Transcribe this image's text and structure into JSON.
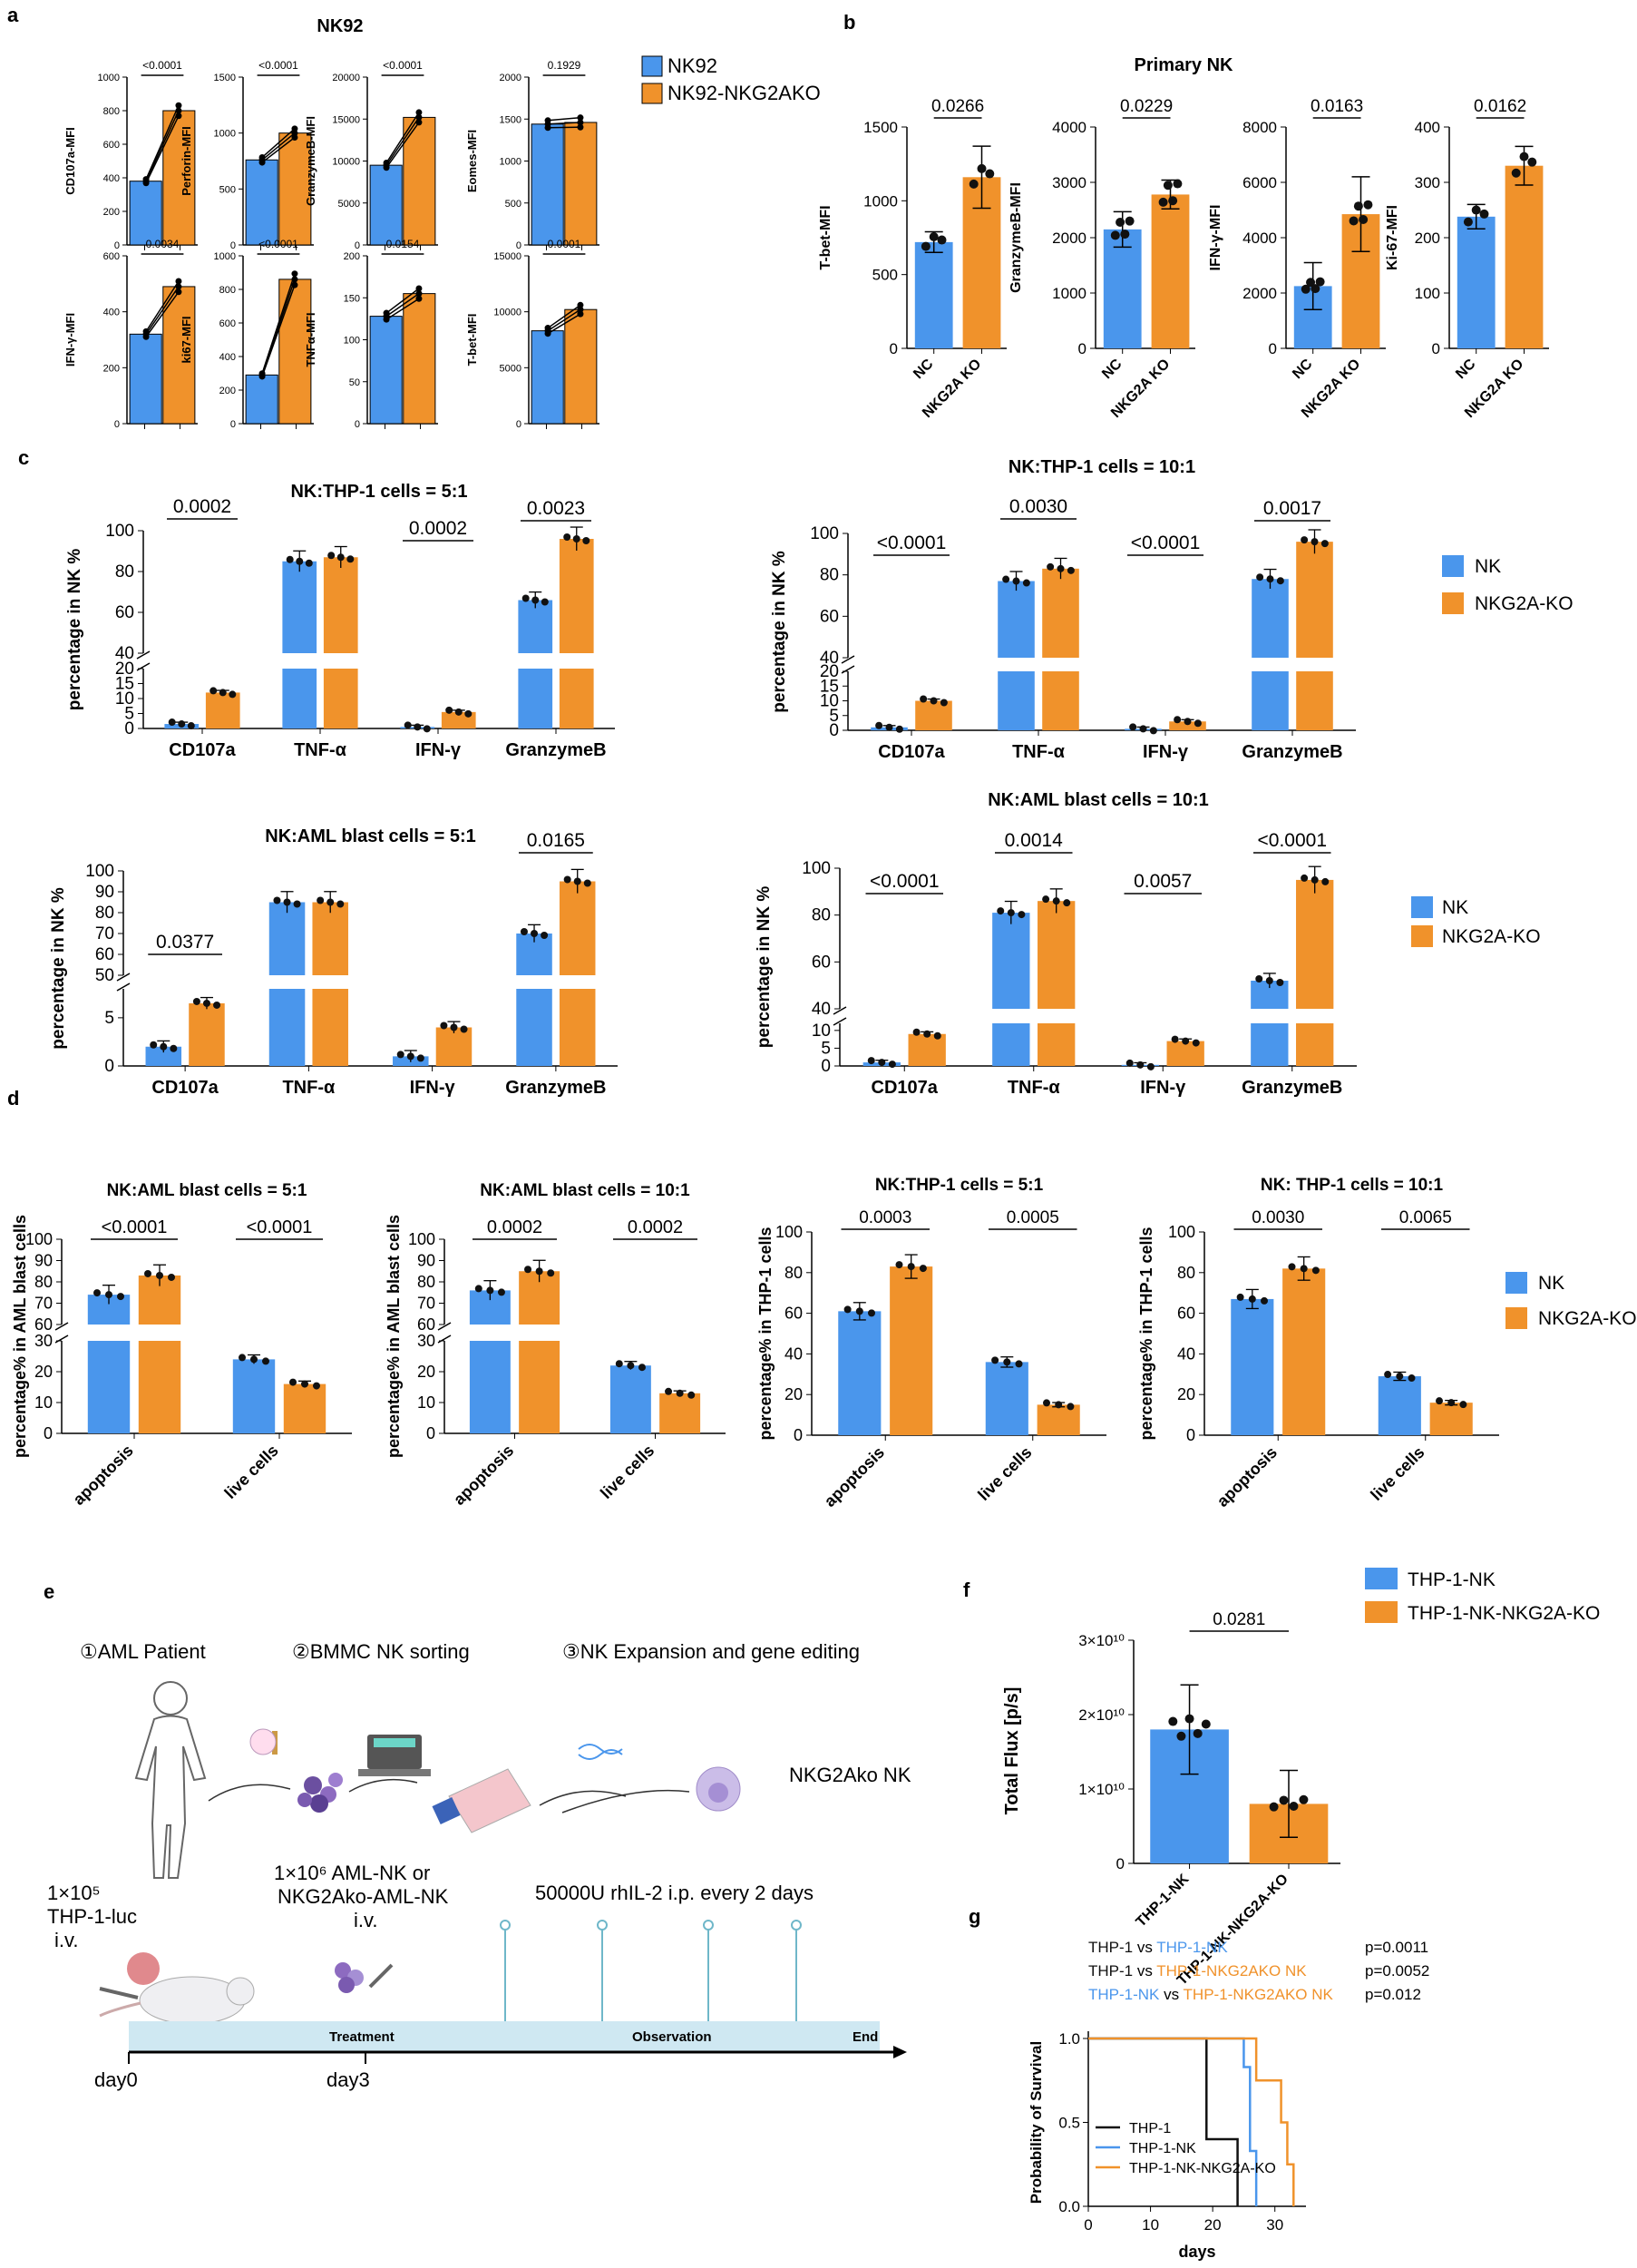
{
  "colors": {
    "blue": "#4a96ec",
    "orange": "#f0922b",
    "black": "#111111",
    "timeline": "#cfe8f2",
    "stem": "#6fb7c9"
  },
  "panel_letters": {
    "a": "a",
    "b": "b",
    "c": "c",
    "d": "d",
    "e": "e",
    "f": "f",
    "g": "g"
  },
  "legends": {
    "a": [
      "NK92",
      "NK92-NKG2AKO"
    ],
    "c1": [
      "NK",
      "NKG2A-KO"
    ],
    "c2": [
      "NK",
      "NKG2A-KO"
    ],
    "d": [
      "NK",
      "NKG2A-KO"
    ],
    "f": [
      "THP-1-NK",
      "THP-1-NK-NKG2A-KO"
    ],
    "g": [
      "THP-1",
      "THP-1-NK",
      "THP-1-NK-NKG2A-KO"
    ]
  },
  "panel_e": {
    "step1": "①AML Patient",
    "step2": "②BMMC NK sorting",
    "step3": "③NK Expansion and gene editing",
    "product": "NKG2Ako NK",
    "inj1_l1": "1×10⁵",
    "inj1_l2": "THP-1-luc",
    "inj1_l3": "i.v.",
    "inj2_l1": "1×10⁶ AML-NK or",
    "inj2_l2": "NKG2Ako-AML-NK",
    "inj2_l3": "i.v.",
    "il2": "50000U rhIL-2 i.p. every 2 days",
    "treatment": "Treatment",
    "observation": "Observation",
    "end": "End",
    "day0": "day0",
    "day3": "day3"
  },
  "chart_data": [
    {
      "id": "a1",
      "type": "paired-bar",
      "title": "NK92",
      "ylabel": "CD107a-MFI",
      "ylim": [
        0,
        1000
      ],
      "ticks": [
        0,
        200,
        400,
        600,
        800,
        1000
      ],
      "values": [
        380,
        800
      ],
      "p": "<0.0001"
    },
    {
      "id": "a2",
      "type": "paired-bar",
      "title": "",
      "ylabel": "Perforin-MFI",
      "ylim": [
        0,
        1500
      ],
      "ticks": [
        0,
        500,
        1000,
        1500
      ],
      "values": [
        760,
        1000
      ],
      "p": "<0.0001"
    },
    {
      "id": "a3",
      "type": "paired-bar",
      "title": "",
      "ylabel": "GranzymeB-MFI",
      "ylim": [
        0,
        20000
      ],
      "ticks": [
        0,
        5000,
        10000,
        15000,
        20000
      ],
      "values": [
        9500,
        15200
      ],
      "p": "<0.0001"
    },
    {
      "id": "a4",
      "type": "paired-bar",
      "title": "",
      "ylabel": "Eomes-MFI",
      "ylim": [
        0,
        2000
      ],
      "ticks": [
        0,
        500,
        1000,
        1500,
        2000
      ],
      "values": [
        1440,
        1460
      ],
      "p": "0.1929"
    },
    {
      "id": "a5",
      "type": "paired-bar",
      "title": "",
      "ylabel": "IFN-γ-MFI",
      "ylim": [
        0,
        600
      ],
      "ticks": [
        0,
        200,
        400,
        600
      ],
      "values": [
        320,
        490
      ],
      "p": "0.0034"
    },
    {
      "id": "a6",
      "type": "paired-bar",
      "title": "",
      "ylabel": "ki67-MFI",
      "ylim": [
        0,
        1000
      ],
      "ticks": [
        0,
        200,
        400,
        600,
        800,
        1000
      ],
      "values": [
        290,
        860
      ],
      "p": "<0.0001"
    },
    {
      "id": "a7",
      "type": "paired-bar",
      "title": "",
      "ylabel": "TNFα-MFI",
      "ylim": [
        0,
        200
      ],
      "ticks": [
        0,
        50,
        100,
        150,
        200
      ],
      "values": [
        128,
        155
      ],
      "p": "0.0154"
    },
    {
      "id": "a8",
      "type": "paired-bar",
      "title": "",
      "ylabel": "T-bet-MFI",
      "ylim": [
        0,
        15000
      ],
      "ticks": [
        0,
        5000,
        10000,
        15000
      ],
      "values": [
        8300,
        10200
      ],
      "p": "0.0001"
    },
    {
      "id": "b1",
      "type": "bar",
      "title": "Primary NK",
      "ylabel": "T-bet-MFI",
      "categories": [
        "NC",
        "NKG2A KO"
      ],
      "ylim": [
        0,
        1500
      ],
      "ticks": [
        0,
        500,
        1000,
        1500
      ],
      "values": [
        720,
        1160
      ],
      "sd": [
        70,
        210
      ],
      "p": "0.0266"
    },
    {
      "id": "b2",
      "type": "bar",
      "title": "",
      "ylabel": "GranzymeB-MFI",
      "categories": [
        "NC",
        "NKG2A KO"
      ],
      "ylim": [
        0,
        4000
      ],
      "ticks": [
        0,
        1000,
        2000,
        3000,
        4000
      ],
      "values": [
        2150,
        2780
      ],
      "sd": [
        320,
        260
      ],
      "p": "0.0229"
    },
    {
      "id": "b3",
      "type": "bar",
      "title": "",
      "ylabel": "IFN-γ-MFI",
      "categories": [
        "NC",
        "NKG2A KO"
      ],
      "ylim": [
        0,
        8000
      ],
      "ticks": [
        0,
        2000,
        4000,
        6000,
        8000
      ],
      "values": [
        2250,
        4850
      ],
      "sd": [
        850,
        1350
      ],
      "p": "0.0163"
    },
    {
      "id": "b4",
      "type": "bar",
      "title": "",
      "ylabel": "Ki-67-MFI",
      "categories": [
        "NC",
        "NKG2A KO"
      ],
      "ylim": [
        0,
        400
      ],
      "ticks": [
        0,
        100,
        200,
        300,
        400
      ],
      "values": [
        238,
        330
      ],
      "sd": [
        22,
        35
      ],
      "p": "0.0162"
    },
    {
      "id": "c1",
      "type": "grouped-bar",
      "title": "NK:THP-1 cells = 5:1",
      "ylabel": "percentage in NK %",
      "categories": [
        "CD107a",
        "TNF-α",
        "IFN-γ",
        "GranzymeB"
      ],
      "series": [
        {
          "name": "NK",
          "values": [
            1.5,
            85,
            0.5,
            66
          ]
        },
        {
          "name": "NKG2A-KO",
          "values": [
            12,
            87,
            5.5,
            96
          ]
        }
      ],
      "ticks_low": [
        0,
        5,
        10,
        15,
        20
      ],
      "ticks_high": [
        40,
        60,
        80,
        100
      ],
      "p": [
        "0.0002",
        "",
        "0.0002",
        "0.0023"
      ]
    },
    {
      "id": "c2",
      "type": "grouped-bar",
      "title": "NK:THP-1 cells = 10:1",
      "ylabel": "percentage in NK %",
      "categories": [
        "CD107a",
        "TNF-α",
        "IFN-γ",
        "GranzymeB"
      ],
      "series": [
        {
          "name": "NK",
          "values": [
            1,
            77,
            0.5,
            78
          ]
        },
        {
          "name": "NKG2A-KO",
          "values": [
            10,
            83,
            3,
            96
          ]
        }
      ],
      "ticks_low": [
        0,
        5,
        10,
        15,
        20
      ],
      "ticks_high": [
        40,
        60,
        80,
        100
      ],
      "p": [
        "<0.0001",
        "0.0030",
        "<0.0001",
        "0.0017"
      ]
    },
    {
      "id": "c3",
      "type": "grouped-bar",
      "title": "NK:AML blast cells = 5:1",
      "ylabel": "percentage in NK %",
      "categories": [
        "CD107a",
        "TNF-α",
        "IFN-γ",
        "GranzymeB"
      ],
      "series": [
        {
          "name": "NK",
          "values": [
            2,
            85,
            1,
            70
          ]
        },
        {
          "name": "NKG2A-KO",
          "values": [
            6.5,
            85,
            4,
            95
          ]
        }
      ],
      "ticks_low": [
        0,
        5
      ],
      "ticks_high": [
        50,
        60,
        70,
        80,
        90,
        100
      ],
      "p": [
        "0.0377",
        "",
        "",
        "0.0165"
      ]
    },
    {
      "id": "c4",
      "type": "grouped-bar",
      "title": "NK:AML blast cells = 10:1",
      "ylabel": "percentage in NK %",
      "categories": [
        "CD107a",
        "TNF-α",
        "IFN-γ",
        "GranzymeB"
      ],
      "series": [
        {
          "name": "NK",
          "values": [
            1,
            81,
            0.3,
            52
          ]
        },
        {
          "name": "NKG2A-KO",
          "values": [
            9,
            86,
            7,
            95
          ]
        }
      ],
      "ticks_low": [
        0,
        5,
        10
      ],
      "ticks_high": [
        40,
        60,
        80,
        100
      ],
      "p": [
        "<0.0001",
        "0.0014",
        "0.0057",
        "<0.0001"
      ]
    },
    {
      "id": "d1",
      "type": "grouped-bar",
      "title": "NK:AML blast cells = 5:1",
      "ylabel": "percentage% in AML blast cells",
      "categories": [
        "apoptosis",
        "live cells"
      ],
      "series": [
        {
          "name": "NK",
          "values": [
            74,
            24
          ]
        },
        {
          "name": "NKG2A-KO",
          "values": [
            83,
            16
          ]
        }
      ],
      "p": [
        "<0.0001",
        "<0.0001"
      ]
    },
    {
      "id": "d2",
      "type": "grouped-bar",
      "title": "NK:AML blast cells = 10:1",
      "ylabel": "percentage% in AML blast cells",
      "categories": [
        "apoptosis",
        "live cells"
      ],
      "series": [
        {
          "name": "NK",
          "values": [
            76,
            22
          ]
        },
        {
          "name": "NKG2A-KO",
          "values": [
            85,
            13
          ]
        }
      ],
      "p": [
        "0.0002",
        "0.0002"
      ]
    },
    {
      "id": "d3",
      "type": "grouped-bar",
      "title": "NK:THP-1 cells = 5:1",
      "ylabel": "percentage% in THP-1 cells",
      "categories": [
        "apoptosis",
        "live cells"
      ],
      "series": [
        {
          "name": "NK",
          "values": [
            61,
            36
          ]
        },
        {
          "name": "NKG2A-KO",
          "values": [
            83,
            15
          ]
        }
      ],
      "ylim": [
        0,
        100
      ],
      "ticks": [
        0,
        20,
        40,
        60,
        80,
        100
      ],
      "p": [
        "0.0003",
        "0.0005"
      ]
    },
    {
      "id": "d4",
      "type": "grouped-bar",
      "title": "NK: THP-1 cells = 10:1",
      "ylabel": "percentage% in THP-1 cells",
      "categories": [
        "apoptosis",
        "live cells"
      ],
      "series": [
        {
          "name": "NK",
          "values": [
            67,
            29
          ]
        },
        {
          "name": "NKG2A-KO",
          "values": [
            82,
            16
          ]
        }
      ],
      "ylim": [
        0,
        100
      ],
      "ticks": [
        0,
        20,
        40,
        60,
        80,
        100
      ],
      "p": [
        "0.0030",
        "0.0065"
      ]
    },
    {
      "id": "f",
      "type": "bar",
      "title": "",
      "ylabel": "Total Flux [p/s]",
      "categories": [
        "THP-1-NK",
        "THP-1-NK-NKG2A-KO"
      ],
      "ylim": [
        0,
        30000000000.0
      ],
      "tick_labels": [
        "0",
        "1×10¹⁰",
        "2×10¹⁰",
        "3×10¹⁰"
      ],
      "values": [
        18000000000.0,
        8000000000.0
      ],
      "sd": [
        6000000000.0,
        4500000000.0
      ],
      "p": "0.0281"
    },
    {
      "id": "g",
      "type": "survival",
      "xlabel": "days",
      "ylabel": "Probability of Survival",
      "xlim": [
        0,
        35
      ],
      "ylim": [
        0,
        1
      ],
      "xticks": [
        0,
        10,
        20,
        30
      ],
      "yticks": [
        "0.0",
        "0.5",
        "1.0"
      ],
      "series": [
        {
          "name": "THP-1",
          "times": [
            0,
            19,
            19,
            24,
            24
          ],
          "surv": [
            1,
            1,
            0.4,
            0.4,
            0
          ]
        },
        {
          "name": "THP-1-NK",
          "times": [
            0,
            25,
            25,
            26,
            26,
            27
          ],
          "surv": [
            1,
            1,
            0.83,
            0.83,
            0.33,
            0
          ]
        },
        {
          "name": "THP-1-NK-NKG2A-KO",
          "times": [
            0,
            27,
            27,
            31,
            31,
            32,
            32,
            33
          ],
          "surv": [
            1,
            1,
            0.75,
            0.75,
            0.5,
            0.5,
            0.25,
            0
          ]
        }
      ],
      "stats": [
        {
          "a": "THP-1",
          "b": "THP-1-NK",
          "p": "p=0.0011"
        },
        {
          "a": "THP-1",
          "b": "THP-1-NKG2AKO NK",
          "p": "p=0.0052"
        },
        {
          "a": "THP-1-NK",
          "b": "THP-1-NKG2AKO NK",
          "p": "p=0.012"
        }
      ]
    }
  ]
}
